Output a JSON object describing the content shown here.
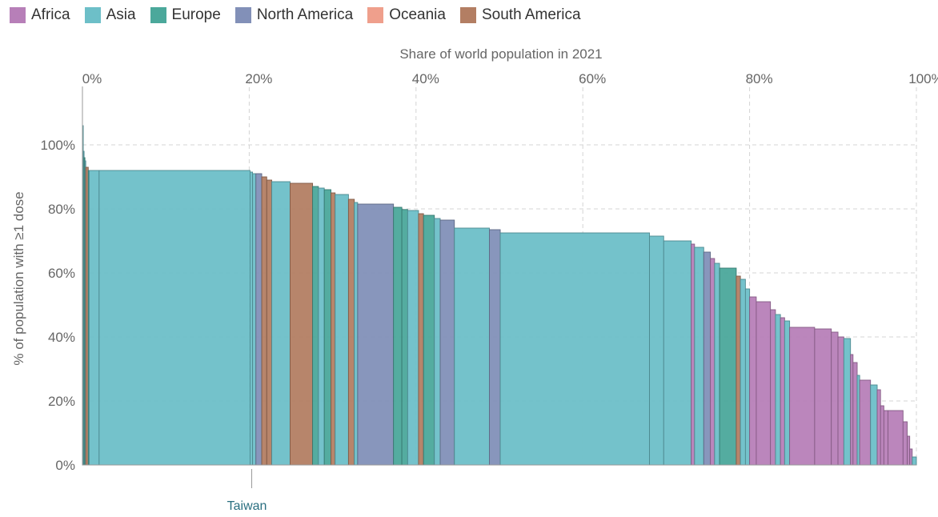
{
  "chart_data": {
    "type": "bar",
    "subtype": "variable-width",
    "x_title": "Share of world population in 2021",
    "y_title": "% of population with ≥1 dose",
    "x_ticks": [
      "0%",
      "20%",
      "40%",
      "60%",
      "80%",
      "100%"
    ],
    "x_tick_values": [
      0,
      20,
      40,
      60,
      80,
      100
    ],
    "y_ticks": [
      "0%",
      "20%",
      "40%",
      "60%",
      "80%",
      "100%"
    ],
    "y_tick_values": [
      0,
      20,
      40,
      60,
      80,
      100
    ],
    "xlim": [
      0,
      100
    ],
    "ylim": [
      0,
      115
    ],
    "grid": true,
    "legend_position": "top-left",
    "legend": [
      {
        "name": "Africa",
        "color": "#b77fb8"
      },
      {
        "name": "Asia",
        "color": "#6dbfc8"
      },
      {
        "name": "Europe",
        "color": "#4ba89b"
      },
      {
        "name": "North America",
        "color": "#8290b8"
      },
      {
        "name": "Oceania",
        "color": "#ef9f8c"
      },
      {
        "name": "South America",
        "color": "#b37e63"
      }
    ],
    "annotation": {
      "label": "Taiwan",
      "x": 20.3
    },
    "bars": [
      {
        "x0": 0,
        "x1": 0.1,
        "y": 106,
        "region": "Asia"
      },
      {
        "x0": 0.1,
        "x1": 0.2,
        "y": 98,
        "region": "Asia"
      },
      {
        "x0": 0.2,
        "x1": 0.3,
        "y": 96,
        "region": "Europe"
      },
      {
        "x0": 0.3,
        "x1": 0.4,
        "y": 95,
        "region": "Asia"
      },
      {
        "x0": 0.4,
        "x1": 0.7,
        "y": 93,
        "region": "South America"
      },
      {
        "x0": 0.7,
        "x1": 0.8,
        "y": 92,
        "region": "Europe"
      },
      {
        "x0": 0.8,
        "x1": 2.0,
        "y": 92,
        "region": "Asia"
      },
      {
        "x0": 2.0,
        "x1": 20.1,
        "y": 92,
        "region": "Asia"
      },
      {
        "x0": 20.1,
        "x1": 20.4,
        "y": 91.5,
        "region": "Asia"
      },
      {
        "x0": 20.4,
        "x1": 20.8,
        "y": 91,
        "region": "Asia"
      },
      {
        "x0": 20.8,
        "x1": 21.5,
        "y": 91,
        "region": "North America"
      },
      {
        "x0": 21.5,
        "x1": 22.1,
        "y": 90,
        "region": "South America"
      },
      {
        "x0": 22.1,
        "x1": 22.7,
        "y": 89,
        "region": "South America"
      },
      {
        "x0": 22.7,
        "x1": 24.9,
        "y": 88.5,
        "region": "Asia"
      },
      {
        "x0": 24.9,
        "x1": 27.6,
        "y": 88,
        "region": "South America"
      },
      {
        "x0": 27.6,
        "x1": 28.3,
        "y": 87,
        "region": "Europe"
      },
      {
        "x0": 28.3,
        "x1": 29.0,
        "y": 86.5,
        "region": "Asia"
      },
      {
        "x0": 29.0,
        "x1": 29.8,
        "y": 86,
        "region": "Europe"
      },
      {
        "x0": 29.8,
        "x1": 30.3,
        "y": 85,
        "region": "South America"
      },
      {
        "x0": 30.3,
        "x1": 31.9,
        "y": 84.5,
        "region": "Asia"
      },
      {
        "x0": 31.9,
        "x1": 32.6,
        "y": 83,
        "region": "South America"
      },
      {
        "x0": 32.6,
        "x1": 33.0,
        "y": 82,
        "region": "Asia"
      },
      {
        "x0": 33.0,
        "x1": 37.3,
        "y": 81.5,
        "region": "North America"
      },
      {
        "x0": 37.3,
        "x1": 38.3,
        "y": 80.5,
        "region": "Europe"
      },
      {
        "x0": 38.3,
        "x1": 39.0,
        "y": 79.8,
        "region": "Europe"
      },
      {
        "x0": 39.0,
        "x1": 40.3,
        "y": 79.5,
        "region": "Asia"
      },
      {
        "x0": 40.3,
        "x1": 40.9,
        "y": 78.5,
        "region": "South America"
      },
      {
        "x0": 40.9,
        "x1": 42.2,
        "y": 78,
        "region": "Europe"
      },
      {
        "x0": 42.2,
        "x1": 42.9,
        "y": 77,
        "region": "Asia"
      },
      {
        "x0": 42.9,
        "x1": 44.6,
        "y": 76.5,
        "region": "North America"
      },
      {
        "x0": 44.6,
        "x1": 48.8,
        "y": 74,
        "region": "Asia"
      },
      {
        "x0": 48.8,
        "x1": 50.1,
        "y": 73.5,
        "region": "North America"
      },
      {
        "x0": 50.1,
        "x1": 68.0,
        "y": 72.5,
        "region": "Asia"
      },
      {
        "x0": 68.0,
        "x1": 69.7,
        "y": 71.5,
        "region": "Asia"
      },
      {
        "x0": 69.7,
        "x1": 73.0,
        "y": 70,
        "region": "Asia"
      },
      {
        "x0": 73.0,
        "x1": 73.4,
        "y": 69,
        "region": "Africa"
      },
      {
        "x0": 73.4,
        "x1": 74.5,
        "y": 68,
        "region": "Asia"
      },
      {
        "x0": 74.5,
        "x1": 75.3,
        "y": 66.5,
        "region": "North America"
      },
      {
        "x0": 75.3,
        "x1": 75.8,
        "y": 64.5,
        "region": "Africa"
      },
      {
        "x0": 75.8,
        "x1": 76.4,
        "y": 63,
        "region": "Asia"
      },
      {
        "x0": 76.4,
        "x1": 78.4,
        "y": 61.5,
        "region": "Europe"
      },
      {
        "x0": 78.4,
        "x1": 78.9,
        "y": 59,
        "region": "South America"
      },
      {
        "x0": 78.9,
        "x1": 79.5,
        "y": 58,
        "region": "Asia"
      },
      {
        "x0": 79.5,
        "x1": 80.0,
        "y": 55,
        "region": "Asia"
      },
      {
        "x0": 80.0,
        "x1": 80.8,
        "y": 52.5,
        "region": "Africa"
      },
      {
        "x0": 80.8,
        "x1": 82.5,
        "y": 51,
        "region": "Africa"
      },
      {
        "x0": 82.5,
        "x1": 83.1,
        "y": 48.5,
        "region": "Africa"
      },
      {
        "x0": 83.1,
        "x1": 83.7,
        "y": 47,
        "region": "Asia"
      },
      {
        "x0": 83.7,
        "x1": 84.2,
        "y": 46,
        "region": "Africa"
      },
      {
        "x0": 84.2,
        "x1": 84.8,
        "y": 45,
        "region": "Asia"
      },
      {
        "x0": 84.8,
        "x1": 87.8,
        "y": 43,
        "region": "Africa"
      },
      {
        "x0": 87.8,
        "x1": 89.8,
        "y": 42.5,
        "region": "Africa"
      },
      {
        "x0": 89.8,
        "x1": 90.6,
        "y": 41.5,
        "region": "Africa"
      },
      {
        "x0": 90.6,
        "x1": 91.3,
        "y": 40,
        "region": "Africa"
      },
      {
        "x0": 91.3,
        "x1": 92.1,
        "y": 39.5,
        "region": "Asia"
      },
      {
        "x0": 92.1,
        "x1": 92.4,
        "y": 34.5,
        "region": "Africa"
      },
      {
        "x0": 92.4,
        "x1": 92.9,
        "y": 32,
        "region": "Africa"
      },
      {
        "x0": 92.9,
        "x1": 93.2,
        "y": 28,
        "region": "Asia"
      },
      {
        "x0": 93.2,
        "x1": 94.5,
        "y": 26.5,
        "region": "Africa"
      },
      {
        "x0": 94.5,
        "x1": 95.3,
        "y": 25,
        "region": "Asia"
      },
      {
        "x0": 95.3,
        "x1": 95.7,
        "y": 23.5,
        "region": "Africa"
      },
      {
        "x0": 95.7,
        "x1": 96.1,
        "y": 18.5,
        "region": "Africa"
      },
      {
        "x0": 96.1,
        "x1": 96.6,
        "y": 17,
        "region": "Africa"
      },
      {
        "x0": 96.6,
        "x1": 98.4,
        "y": 17,
        "region": "Africa"
      },
      {
        "x0": 98.4,
        "x1": 98.9,
        "y": 13.5,
        "region": "Africa"
      },
      {
        "x0": 98.9,
        "x1": 99.2,
        "y": 9,
        "region": "Africa"
      },
      {
        "x0": 99.2,
        "x1": 99.5,
        "y": 5,
        "region": "Africa"
      },
      {
        "x0": 99.5,
        "x1": 100,
        "y": 2.5,
        "region": "Asia"
      }
    ]
  }
}
